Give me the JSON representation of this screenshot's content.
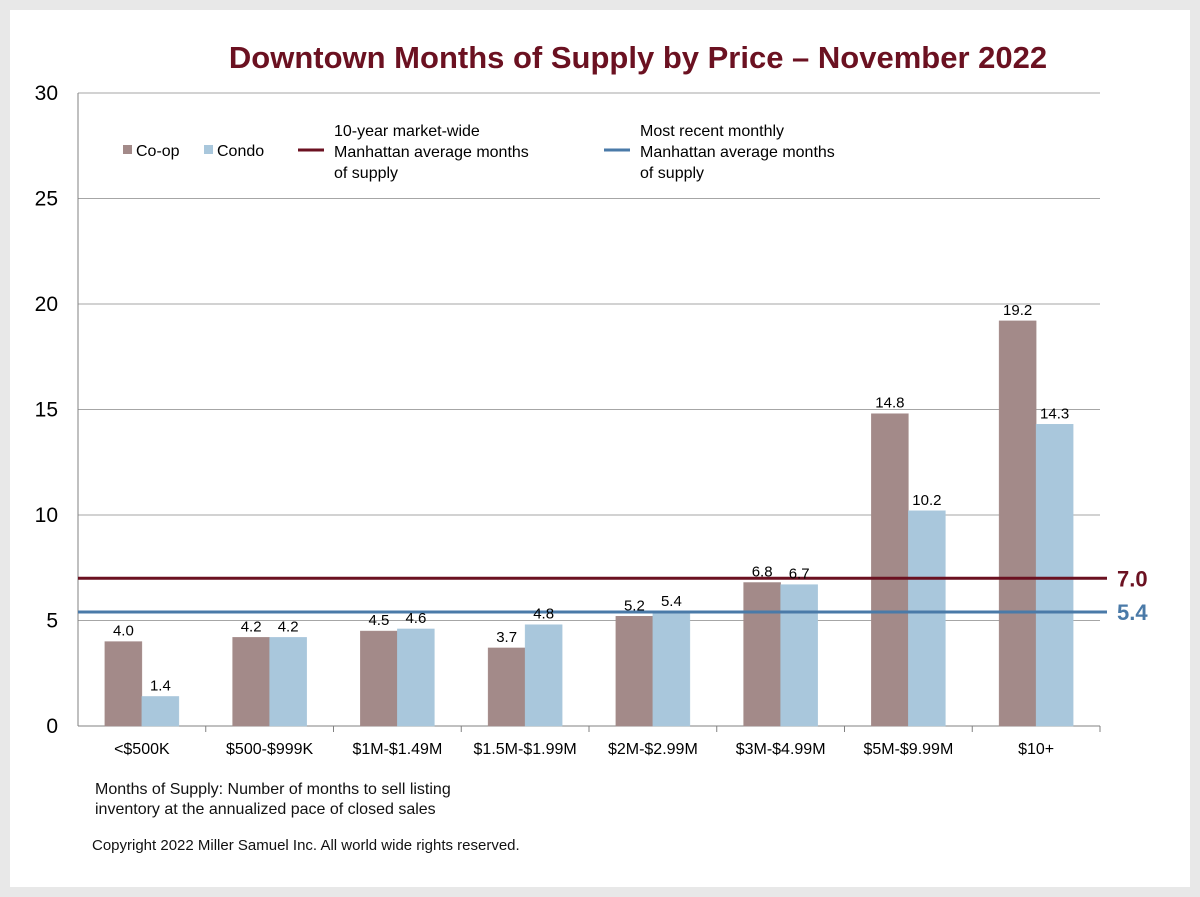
{
  "colors": {
    "coop": "#a38a89",
    "condo": "#a9c7dc",
    "ten_year_line": "#6b1121",
    "recent_line": "#4a7aa8",
    "title": "#6b1121",
    "grid": "#a6a6a6"
  },
  "chart_data": {
    "type": "bar",
    "title": "Downtown Months of Supply by Price – November 2022",
    "xlabel": "",
    "ylabel": "",
    "ylim": [
      0,
      30
    ],
    "yticks": [
      0,
      5,
      10,
      15,
      20,
      25,
      30
    ],
    "grid": true,
    "legend_position": "top-left",
    "categories": [
      "<$500K",
      "$500-$999K",
      "$1M-$1.49M",
      "$1.5M-$1.99M",
      "$2M-$2.99M",
      "$3M-$4.99M",
      "$5M-$9.99M",
      "$10+"
    ],
    "series": [
      {
        "name": "Co-op",
        "values": [
          4.0,
          4.2,
          4.5,
          3.7,
          5.2,
          6.8,
          14.8,
          19.2
        ],
        "labels": [
          "4.0",
          "4.2",
          "4.5",
          "3.7",
          "5.2",
          "6.8",
          "14.8",
          "19.2"
        ]
      },
      {
        "name": "Condo",
        "values": [
          1.4,
          4.2,
          4.6,
          4.8,
          5.4,
          6.7,
          10.2,
          14.3
        ],
        "labels": [
          "1.4",
          "4.2",
          "4.6",
          "4.8",
          "5.4",
          "6.7",
          "10.2",
          "14.3"
        ]
      }
    ],
    "reference_lines": [
      {
        "name": "10-year market-wide Manhattan average months of supply",
        "legend_lines": [
          "10-year market-wide",
          "Manhattan average months",
          "of supply"
        ],
        "value": 7.0,
        "label": "7.0"
      },
      {
        "name": "Most recent monthly Manhattan average months of supply",
        "legend_lines": [
          "Most recent monthly",
          "Manhattan average months",
          "of supply"
        ],
        "value": 5.4,
        "label": "5.4"
      }
    ]
  },
  "footnote": {
    "line1": "Months of Supply: Number of months to sell listing",
    "line2": "inventory at the annualized pace of closed sales",
    "copyright": "Copyright 2022 Miller Samuel Inc.  All world wide rights reserved."
  }
}
